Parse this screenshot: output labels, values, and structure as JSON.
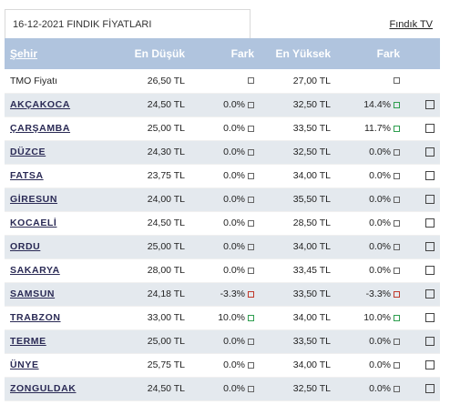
{
  "header": {
    "title": "16-12-2021 FINDIK FİYATLARI",
    "tv_link": "Fındık TV"
  },
  "table": {
    "columns": [
      "Şehir",
      "En Düşük",
      "Fark",
      "En Yüksek",
      "Fark"
    ],
    "rows": [
      {
        "city": "TMO Fiyatı",
        "low": "26,50 TL",
        "low_diff": "",
        "high": "27,00 TL",
        "high_diff": "",
        "low_trend": "neutral",
        "high_trend": "neutral",
        "link": false
      },
      {
        "city": "AKÇAKOCA",
        "low": "24,50 TL",
        "low_diff": "0.0%",
        "high": "32,50 TL",
        "high_diff": "14.4%",
        "low_trend": "neutral",
        "high_trend": "up",
        "link": true
      },
      {
        "city": "ÇARŞAMBA",
        "low": "25,00 TL",
        "low_diff": "0.0%",
        "high": "33,50 TL",
        "high_diff": "11.7%",
        "low_trend": "neutral",
        "high_trend": "up",
        "link": true
      },
      {
        "city": "DÜZCE",
        "low": "24,30 TL",
        "low_diff": "0.0%",
        "high": "32,50 TL",
        "high_diff": "0.0%",
        "low_trend": "neutral",
        "high_trend": "neutral",
        "link": true
      },
      {
        "city": "FATSA",
        "low": "23,75 TL",
        "low_diff": "0.0%",
        "high": "34,00 TL",
        "high_diff": "0.0%",
        "low_trend": "neutral",
        "high_trend": "neutral",
        "link": true
      },
      {
        "city": "GİRESUN",
        "low": "24,00 TL",
        "low_diff": "0.0%",
        "high": "35,50 TL",
        "high_diff": "0.0%",
        "low_trend": "neutral",
        "high_trend": "neutral",
        "link": true
      },
      {
        "city": "KOCAELİ",
        "low": "24,50 TL",
        "low_diff": "0.0%",
        "high": "28,50 TL",
        "high_diff": "0.0%",
        "low_trend": "neutral",
        "high_trend": "neutral",
        "link": true
      },
      {
        "city": "ORDU",
        "low": "25,00 TL",
        "low_diff": "0.0%",
        "high": "34,00 TL",
        "high_diff": "0.0%",
        "low_trend": "neutral",
        "high_trend": "neutral",
        "link": true
      },
      {
        "city": "SAKARYA",
        "low": "28,00 TL",
        "low_diff": "0.0%",
        "high": "33,45 TL",
        "high_diff": "0.0%",
        "low_trend": "neutral",
        "high_trend": "neutral",
        "link": true
      },
      {
        "city": "SAMSUN",
        "low": "24,18 TL",
        "low_diff": "-3.3%",
        "high": "33,50 TL",
        "high_diff": "-3.3%",
        "low_trend": "down",
        "high_trend": "down",
        "link": true
      },
      {
        "city": "TRABZON",
        "low": "33,00 TL",
        "low_diff": "10.0%",
        "high": "34,00 TL",
        "high_diff": "10.0%",
        "low_trend": "up",
        "high_trend": "up",
        "link": true
      },
      {
        "city": "TERME",
        "low": "25,00 TL",
        "low_diff": "0.0%",
        "high": "33,50 TL",
        "high_diff": "0.0%",
        "low_trend": "neutral",
        "high_trend": "neutral",
        "link": true
      },
      {
        "city": "ÜNYE",
        "low": "25,75 TL",
        "low_diff": "0.0%",
        "high": "34,00 TL",
        "high_diff": "0.0%",
        "low_trend": "neutral",
        "high_trend": "neutral",
        "link": true
      },
      {
        "city": "ZONGULDAK",
        "low": "24,50 TL",
        "low_diff": "0.0%",
        "high": "32,50 TL",
        "high_diff": "0.0%",
        "low_trend": "neutral",
        "high_trend": "neutral",
        "link": true
      }
    ]
  },
  "colors": {
    "header_bg": "#b0c4de",
    "stripe": "#e4e9ee",
    "trend_up": "#2e9e4f",
    "trend_down": "#c0392b"
  },
  "icons": {
    "trend": "small-square-trend-icon",
    "row_action": "checkbox-icon"
  }
}
